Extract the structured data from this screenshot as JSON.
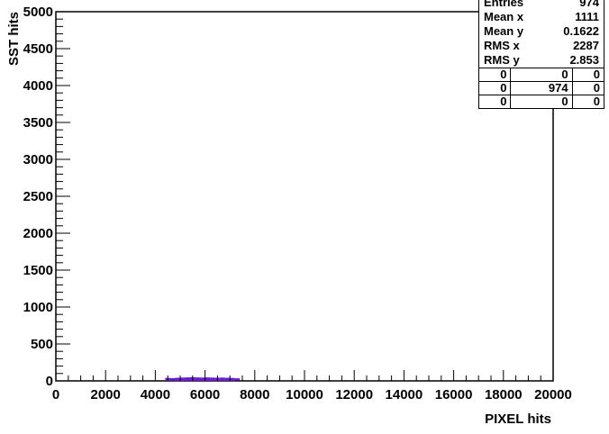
{
  "chart_data": {
    "type": "heatmap",
    "title": "",
    "xlabel": "PIXEL hits",
    "ylabel": "SST hits",
    "xlim": [
      0,
      20000
    ],
    "ylim": [
      0,
      5000
    ],
    "x_ticks": [
      0,
      2000,
      4000,
      6000,
      8000,
      10000,
      12000,
      14000,
      16000,
      18000,
      20000
    ],
    "y_ticks": [
      0,
      500,
      1000,
      1500,
      2000,
      2500,
      3000,
      3500,
      4000,
      4500,
      5000
    ],
    "x_tick_labels": [
      "0",
      "2000",
      "4000",
      "6000",
      "8000",
      "10000",
      "12000",
      "14000",
      "16000",
      "18000",
      "20000"
    ],
    "y_tick_labels": [
      "0",
      "500",
      "1000",
      "1500",
      "2000",
      "2500",
      "3000",
      "3500",
      "4000",
      "4500",
      "5000"
    ],
    "fill_color": "#6a1bd6",
    "cells": [
      {
        "x": 4500,
        "y": 20,
        "h": 40
      },
      {
        "x": 4700,
        "y": 20,
        "h": 35
      },
      {
        "x": 4900,
        "y": 20,
        "h": 45
      },
      {
        "x": 5100,
        "y": 20,
        "h": 50
      },
      {
        "x": 5300,
        "y": 20,
        "h": 55
      },
      {
        "x": 5500,
        "y": 20,
        "h": 60
      },
      {
        "x": 5700,
        "y": 20,
        "h": 55
      },
      {
        "x": 5900,
        "y": 20,
        "h": 50
      },
      {
        "x": 6100,
        "y": 20,
        "h": 55
      },
      {
        "x": 6300,
        "y": 20,
        "h": 50
      },
      {
        "x": 6500,
        "y": 20,
        "h": 45
      },
      {
        "x": 6700,
        "y": 20,
        "h": 50
      },
      {
        "x": 6900,
        "y": 20,
        "h": 45
      },
      {
        "x": 7100,
        "y": 20,
        "h": 40
      },
      {
        "x": 7300,
        "y": 20,
        "h": 30
      }
    ]
  },
  "stats": {
    "entries_label": "Entries",
    "entries_value": "974",
    "mean_x_label": "Mean x",
    "mean_x_value": "1111",
    "mean_y_label": "Mean y",
    "mean_y_value": "0.1622",
    "rms_x_label": "RMS x",
    "rms_x_value": "2287",
    "rms_y_label": "RMS y",
    "rms_y_value": "2.853",
    "grid": [
      [
        "0",
        "0",
        "0"
      ],
      [
        "0",
        "974",
        "0"
      ],
      [
        "0",
        "0",
        "0"
      ]
    ]
  }
}
